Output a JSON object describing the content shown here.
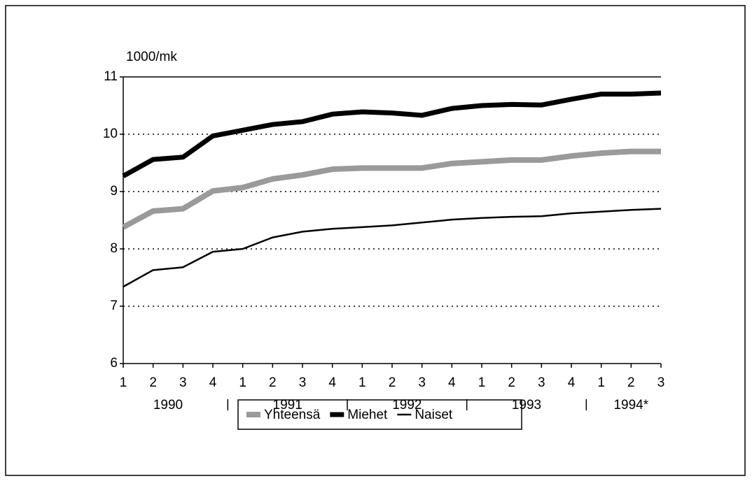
{
  "chart_data": {
    "type": "line",
    "y_label": "1000/mk",
    "categories": [
      "1",
      "2",
      "3",
      "4",
      "1",
      "2",
      "3",
      "4",
      "1",
      "2",
      "3",
      "4",
      "1",
      "2",
      "3",
      "4",
      "1",
      "2",
      "3"
    ],
    "groups": [
      "1990",
      "1991",
      "1992",
      "1993",
      "1994*"
    ],
    "series": [
      {
        "name": "Yhteensä",
        "color": "#9a9a9a",
        "values": [
          8.38,
          8.66,
          8.7,
          9.01,
          9.07,
          9.22,
          9.29,
          9.39,
          9.41,
          9.41,
          9.41,
          9.49,
          9.52,
          9.55,
          9.55,
          9.62,
          9.67,
          9.7,
          9.7
        ]
      },
      {
        "name": "Miehet",
        "color": "#000000",
        "values": [
          9.27,
          9.56,
          9.6,
          9.97,
          10.07,
          10.17,
          10.22,
          10.35,
          10.39,
          10.37,
          10.33,
          10.45,
          10.5,
          10.52,
          10.51,
          10.61,
          10.7,
          10.7,
          10.72
        ]
      },
      {
        "name": "Naiset",
        "color": "#000000",
        "values": [
          7.34,
          7.63,
          7.68,
          7.95,
          8.0,
          8.2,
          8.3,
          8.35,
          8.38,
          8.41,
          8.46,
          8.51,
          8.54,
          8.56,
          8.57,
          8.62,
          8.65,
          8.68,
          8.7
        ]
      }
    ],
    "ylim": [
      6,
      11
    ],
    "yticks": [
      6,
      7,
      8,
      9,
      10,
      11
    ],
    "grid": true
  }
}
